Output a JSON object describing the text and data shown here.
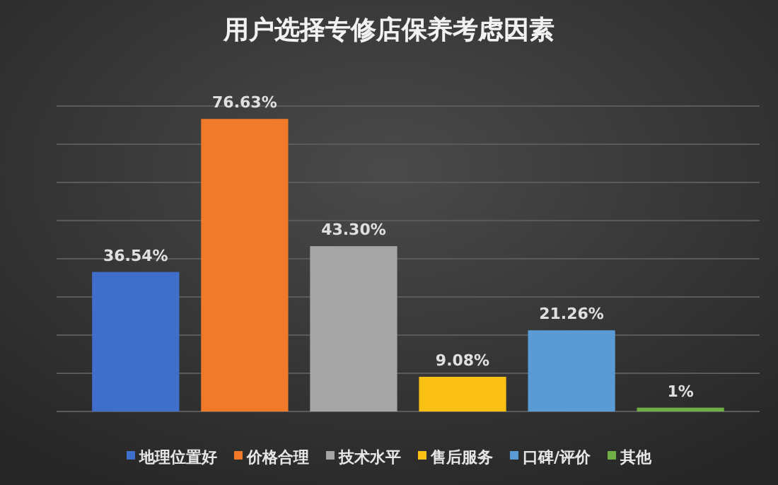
{
  "chart_data": {
    "type": "bar",
    "title": "用户选择专修店保养考虑因素",
    "categories": [
      null
    ],
    "series": [
      {
        "name": "地理位置好",
        "color": "#3f6fcb",
        "values": [
          36.54
        ],
        "value_labels": [
          "36.54%"
        ]
      },
      {
        "name": "价格合理",
        "color": "#f07a2a",
        "values": [
          76.63
        ],
        "value_labels": [
          "76.63%"
        ]
      },
      {
        "name": "技术水平",
        "color": "#a5a5a5",
        "values": [
          43.3
        ],
        "value_labels": [
          "43.30%"
        ]
      },
      {
        "name": "售后服务",
        "color": "#fbc014",
        "values": [
          9.08
        ],
        "value_labels": [
          "9.08%"
        ]
      },
      {
        "name": "口碑/评价",
        "color": "#5b9bd5",
        "values": [
          21.26
        ],
        "value_labels": [
          "21.26%"
        ]
      },
      {
        "name": "其他",
        "color": "#6fae45",
        "values": [
          1
        ],
        "value_labels": [
          "1%"
        ]
      }
    ],
    "ylim": [
      0,
      80
    ],
    "yticks": [
      {
        "value": 0,
        "label": null
      },
      {
        "value": 10,
        "label": null
      },
      {
        "value": 20,
        "label": null
      },
      {
        "value": 30,
        "label": null
      },
      {
        "value": 40,
        "label": null
      },
      {
        "value": 50,
        "label": null
      },
      {
        "value": 60,
        "label": null
      },
      {
        "value": 70,
        "label": null
      },
      {
        "value": 80,
        "label": null
      }
    ],
    "grid": "y",
    "legend": "bottom"
  }
}
